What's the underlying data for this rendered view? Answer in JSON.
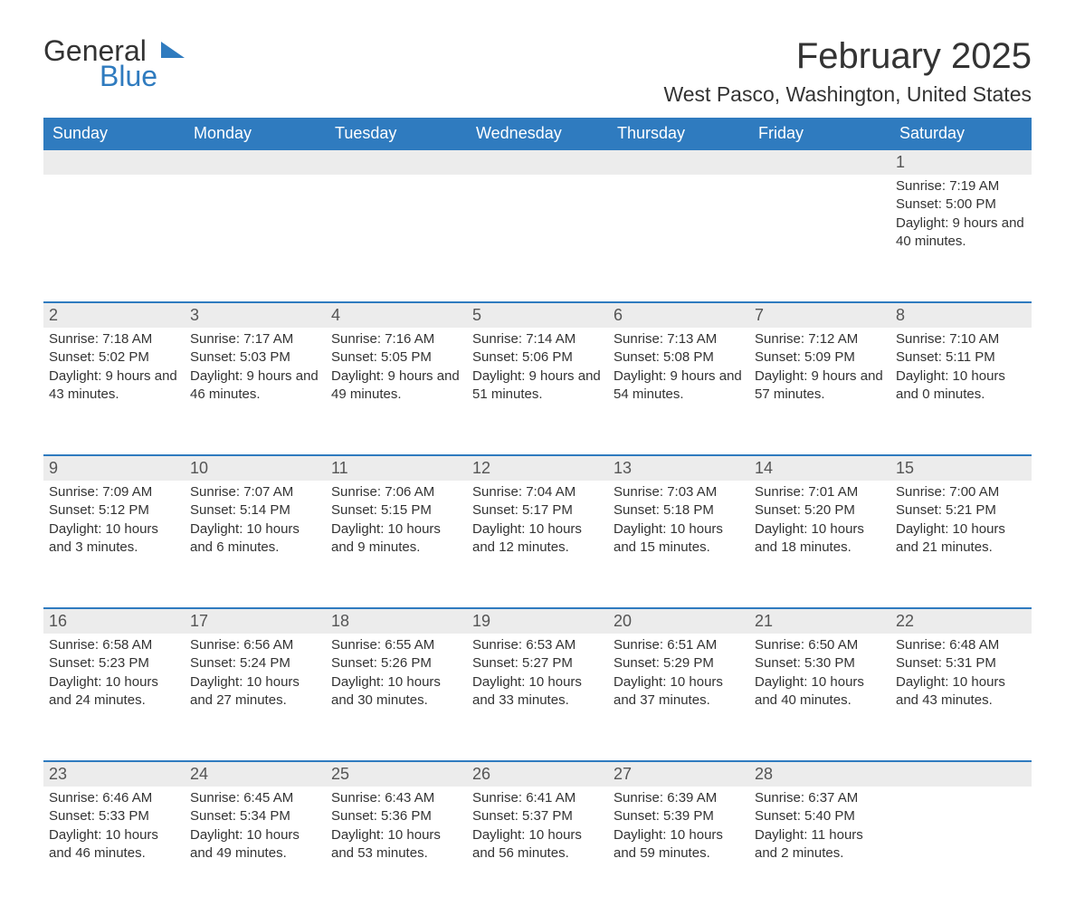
{
  "brand": {
    "line1": "General",
    "line2": "Blue",
    "accent_color": "#2f7bbf"
  },
  "title": "February 2025",
  "location": "West Pasco, Washington, United States",
  "layout": {
    "type": "calendar",
    "columns": 7,
    "weekday_header_bg": "#2f7bbf",
    "weekday_header_fg": "#ffffff",
    "row_separator_color": "#2f7bbf",
    "day_strip_bg": "#ececec",
    "page_bg": "#ffffff",
    "body_text_color": "#333333",
    "title_fontsize": 40,
    "location_fontsize": 23,
    "weekday_fontsize": 18,
    "daynum_fontsize": 18,
    "body_fontsize": 15
  },
  "weekdays": [
    "Sunday",
    "Monday",
    "Tuesday",
    "Wednesday",
    "Thursday",
    "Friday",
    "Saturday"
  ],
  "weeks": [
    [
      {
        "n": "",
        "sunrise": "",
        "sunset": "",
        "daylight": ""
      },
      {
        "n": "",
        "sunrise": "",
        "sunset": "",
        "daylight": ""
      },
      {
        "n": "",
        "sunrise": "",
        "sunset": "",
        "daylight": ""
      },
      {
        "n": "",
        "sunrise": "",
        "sunset": "",
        "daylight": ""
      },
      {
        "n": "",
        "sunrise": "",
        "sunset": "",
        "daylight": ""
      },
      {
        "n": "",
        "sunrise": "",
        "sunset": "",
        "daylight": ""
      },
      {
        "n": "1",
        "sunrise": "Sunrise: 7:19 AM",
        "sunset": "Sunset: 5:00 PM",
        "daylight": "Daylight: 9 hours and 40 minutes."
      }
    ],
    [
      {
        "n": "2",
        "sunrise": "Sunrise: 7:18 AM",
        "sunset": "Sunset: 5:02 PM",
        "daylight": "Daylight: 9 hours and 43 minutes."
      },
      {
        "n": "3",
        "sunrise": "Sunrise: 7:17 AM",
        "sunset": "Sunset: 5:03 PM",
        "daylight": "Daylight: 9 hours and 46 minutes."
      },
      {
        "n": "4",
        "sunrise": "Sunrise: 7:16 AM",
        "sunset": "Sunset: 5:05 PM",
        "daylight": "Daylight: 9 hours and 49 minutes."
      },
      {
        "n": "5",
        "sunrise": "Sunrise: 7:14 AM",
        "sunset": "Sunset: 5:06 PM",
        "daylight": "Daylight: 9 hours and 51 minutes."
      },
      {
        "n": "6",
        "sunrise": "Sunrise: 7:13 AM",
        "sunset": "Sunset: 5:08 PM",
        "daylight": "Daylight: 9 hours and 54 minutes."
      },
      {
        "n": "7",
        "sunrise": "Sunrise: 7:12 AM",
        "sunset": "Sunset: 5:09 PM",
        "daylight": "Daylight: 9 hours and 57 minutes."
      },
      {
        "n": "8",
        "sunrise": "Sunrise: 7:10 AM",
        "sunset": "Sunset: 5:11 PM",
        "daylight": "Daylight: 10 hours and 0 minutes."
      }
    ],
    [
      {
        "n": "9",
        "sunrise": "Sunrise: 7:09 AM",
        "sunset": "Sunset: 5:12 PM",
        "daylight": "Daylight: 10 hours and 3 minutes."
      },
      {
        "n": "10",
        "sunrise": "Sunrise: 7:07 AM",
        "sunset": "Sunset: 5:14 PM",
        "daylight": "Daylight: 10 hours and 6 minutes."
      },
      {
        "n": "11",
        "sunrise": "Sunrise: 7:06 AM",
        "sunset": "Sunset: 5:15 PM",
        "daylight": "Daylight: 10 hours and 9 minutes."
      },
      {
        "n": "12",
        "sunrise": "Sunrise: 7:04 AM",
        "sunset": "Sunset: 5:17 PM",
        "daylight": "Daylight: 10 hours and 12 minutes."
      },
      {
        "n": "13",
        "sunrise": "Sunrise: 7:03 AM",
        "sunset": "Sunset: 5:18 PM",
        "daylight": "Daylight: 10 hours and 15 minutes."
      },
      {
        "n": "14",
        "sunrise": "Sunrise: 7:01 AM",
        "sunset": "Sunset: 5:20 PM",
        "daylight": "Daylight: 10 hours and 18 minutes."
      },
      {
        "n": "15",
        "sunrise": "Sunrise: 7:00 AM",
        "sunset": "Sunset: 5:21 PM",
        "daylight": "Daylight: 10 hours and 21 minutes."
      }
    ],
    [
      {
        "n": "16",
        "sunrise": "Sunrise: 6:58 AM",
        "sunset": "Sunset: 5:23 PM",
        "daylight": "Daylight: 10 hours and 24 minutes."
      },
      {
        "n": "17",
        "sunrise": "Sunrise: 6:56 AM",
        "sunset": "Sunset: 5:24 PM",
        "daylight": "Daylight: 10 hours and 27 minutes."
      },
      {
        "n": "18",
        "sunrise": "Sunrise: 6:55 AM",
        "sunset": "Sunset: 5:26 PM",
        "daylight": "Daylight: 10 hours and 30 minutes."
      },
      {
        "n": "19",
        "sunrise": "Sunrise: 6:53 AM",
        "sunset": "Sunset: 5:27 PM",
        "daylight": "Daylight: 10 hours and 33 minutes."
      },
      {
        "n": "20",
        "sunrise": "Sunrise: 6:51 AM",
        "sunset": "Sunset: 5:29 PM",
        "daylight": "Daylight: 10 hours and 37 minutes."
      },
      {
        "n": "21",
        "sunrise": "Sunrise: 6:50 AM",
        "sunset": "Sunset: 5:30 PM",
        "daylight": "Daylight: 10 hours and 40 minutes."
      },
      {
        "n": "22",
        "sunrise": "Sunrise: 6:48 AM",
        "sunset": "Sunset: 5:31 PM",
        "daylight": "Daylight: 10 hours and 43 minutes."
      }
    ],
    [
      {
        "n": "23",
        "sunrise": "Sunrise: 6:46 AM",
        "sunset": "Sunset: 5:33 PM",
        "daylight": "Daylight: 10 hours and 46 minutes."
      },
      {
        "n": "24",
        "sunrise": "Sunrise: 6:45 AM",
        "sunset": "Sunset: 5:34 PM",
        "daylight": "Daylight: 10 hours and 49 minutes."
      },
      {
        "n": "25",
        "sunrise": "Sunrise: 6:43 AM",
        "sunset": "Sunset: 5:36 PM",
        "daylight": "Daylight: 10 hours and 53 minutes."
      },
      {
        "n": "26",
        "sunrise": "Sunrise: 6:41 AM",
        "sunset": "Sunset: 5:37 PM",
        "daylight": "Daylight: 10 hours and 56 minutes."
      },
      {
        "n": "27",
        "sunrise": "Sunrise: 6:39 AM",
        "sunset": "Sunset: 5:39 PM",
        "daylight": "Daylight: 10 hours and 59 minutes."
      },
      {
        "n": "28",
        "sunrise": "Sunrise: 6:37 AM",
        "sunset": "Sunset: 5:40 PM",
        "daylight": "Daylight: 11 hours and 2 minutes."
      },
      {
        "n": "",
        "sunrise": "",
        "sunset": "",
        "daylight": ""
      }
    ]
  ]
}
